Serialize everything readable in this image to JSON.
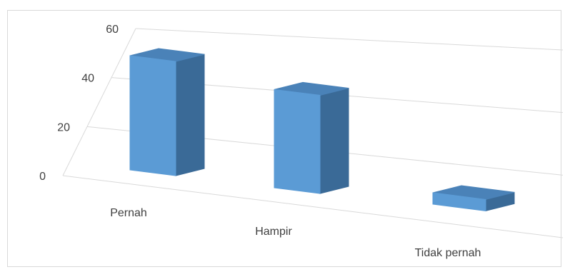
{
  "chart_data": {
    "type": "bar",
    "subtype": "3d-perspective",
    "categories": [
      "Pernah",
      "Hampir",
      "Tidak pernah"
    ],
    "values": [
      50,
      43,
      5
    ],
    "ylim": [
      0,
      60
    ],
    "yticks": [
      "0",
      "20",
      "40",
      "60"
    ],
    "grid": true,
    "legend": "none",
    "colors": {
      "front": "#5b9bd5",
      "side": "#3a6a97",
      "top": "#4a82b8",
      "grid": "#d9d9d9",
      "text": "#404040"
    }
  }
}
